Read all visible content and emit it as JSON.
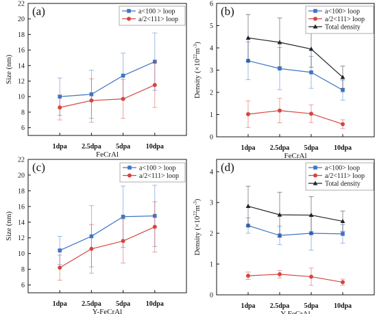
{
  "colors": {
    "blue": "#3f74c4",
    "red": "#d6453f",
    "black": "#222222",
    "axis": "#111111"
  },
  "chart_data": [
    {
      "type": "line",
      "panel_label": "(a)",
      "categories": [
        "1dpa",
        "2.5dpa",
        "5dpa",
        "10dpa"
      ],
      "xlabel": "FeCrAl",
      "ylabel": "Size (nm)",
      "ylim": [
        5,
        22
      ],
      "yticks": [
        6,
        8,
        10,
        12,
        14,
        16,
        18,
        20,
        22
      ],
      "legend_position": "top-right",
      "grid": false,
      "series": [
        {
          "name": "a<100 > loop",
          "color": "#3f74c4",
          "marker": "square",
          "values": [
            10.0,
            10.3,
            12.7,
            14.5
          ],
          "err": [
            2.4,
            3.1,
            2.9,
            3.7
          ]
        },
        {
          "name": "a/2<111> loop",
          "color": "#d6453f",
          "marker": "circle",
          "values": [
            8.6,
            9.5,
            9.7,
            11.5
          ],
          "err": [
            1.6,
            2.8,
            2.5,
            2.9
          ]
        }
      ]
    },
    {
      "type": "line",
      "panel_label": "(b)",
      "categories": [
        "1dpa",
        "2.5dpa",
        "5dpa",
        "10dpa"
      ],
      "xlabel": "FeCrAl",
      "ylabel_main": "Density (×10",
      "ylabel_exp1": "22",
      "ylabel_unit": "m",
      "ylabel_exp2": "-3",
      "ylabel_close": ")",
      "ylim": [
        0,
        6
      ],
      "yticks": [
        0,
        1,
        2,
        3,
        4,
        5,
        6
      ],
      "legend_position": "top-right",
      "grid": false,
      "series": [
        {
          "name": "a<100> loop",
          "color": "#3f74c4",
          "marker": "square",
          "values": [
            3.42,
            3.07,
            2.9,
            2.1
          ],
          "err": [
            0.85,
            0.95,
            0.72,
            0.45
          ]
        },
        {
          "name": "a/2<111> loop",
          "color": "#d6453f",
          "marker": "circle",
          "values": [
            1.02,
            1.18,
            1.04,
            0.57
          ],
          "err": [
            0.6,
            0.55,
            0.4,
            0.2
          ]
        },
        {
          "name": "Total density",
          "color": "#222222",
          "marker": "triangle",
          "values": [
            4.45,
            4.25,
            3.95,
            2.68
          ],
          "err": [
            1.05,
            1.1,
            0.82,
            0.5
          ]
        }
      ]
    },
    {
      "type": "line",
      "panel_label": "(c)",
      "categories": [
        "1dpa",
        "2.5dpa",
        "5dpa",
        "10dpa"
      ],
      "xlabel": "Y-FeCrAl",
      "ylabel": "Size (nm)",
      "ylim": [
        5,
        22
      ],
      "yticks": [
        6,
        8,
        10,
        12,
        14,
        16,
        18,
        20,
        22
      ],
      "legend_position": "top-right",
      "grid": false,
      "series": [
        {
          "name": "a<100 > loop",
          "color": "#3f74c4",
          "marker": "square",
          "values": [
            10.4,
            12.2,
            14.7,
            14.8
          ],
          "err": [
            1.8,
            3.9,
            3.9,
            3.9
          ]
        },
        {
          "name": "a/2<111> loop",
          "color": "#d6453f",
          "marker": "circle",
          "values": [
            8.2,
            10.6,
            11.6,
            13.4
          ],
          "err": [
            1.6,
            3.1,
            2.8,
            3.2
          ]
        }
      ]
    },
    {
      "type": "line",
      "panel_label": "(d)",
      "categories": [
        "1dpa",
        "2.5dpa",
        "5dpa",
        "10dpa"
      ],
      "xlabel": "Y-FeCrAl",
      "ylabel_main": "Density (×10",
      "ylabel_exp1": "22",
      "ylabel_unit": "m",
      "ylabel_exp2": "-3",
      "ylabel_close": ")",
      "ylim": [
        0,
        4.4
      ],
      "yticks": [
        0,
        1,
        2,
        3,
        4
      ],
      "legend_position": "top-right",
      "grid": false,
      "series": [
        {
          "name": "a<100> loop",
          "color": "#3f74c4",
          "marker": "square",
          "values": [
            2.25,
            1.93,
            2.0,
            1.98
          ],
          "err": [
            0.25,
            0.3,
            0.55,
            0.3
          ]
        },
        {
          "name": "a/2<111> loop",
          "color": "#d6453f",
          "marker": "circle",
          "values": [
            0.62,
            0.67,
            0.59,
            0.41
          ],
          "err": [
            0.12,
            0.12,
            0.28,
            0.1
          ]
        },
        {
          "name": "Total density",
          "color": "#222222",
          "marker": "triangle",
          "values": [
            2.88,
            2.6,
            2.59,
            2.39
          ],
          "err": [
            0.65,
            0.73,
            0.6,
            0.33
          ]
        }
      ]
    }
  ]
}
